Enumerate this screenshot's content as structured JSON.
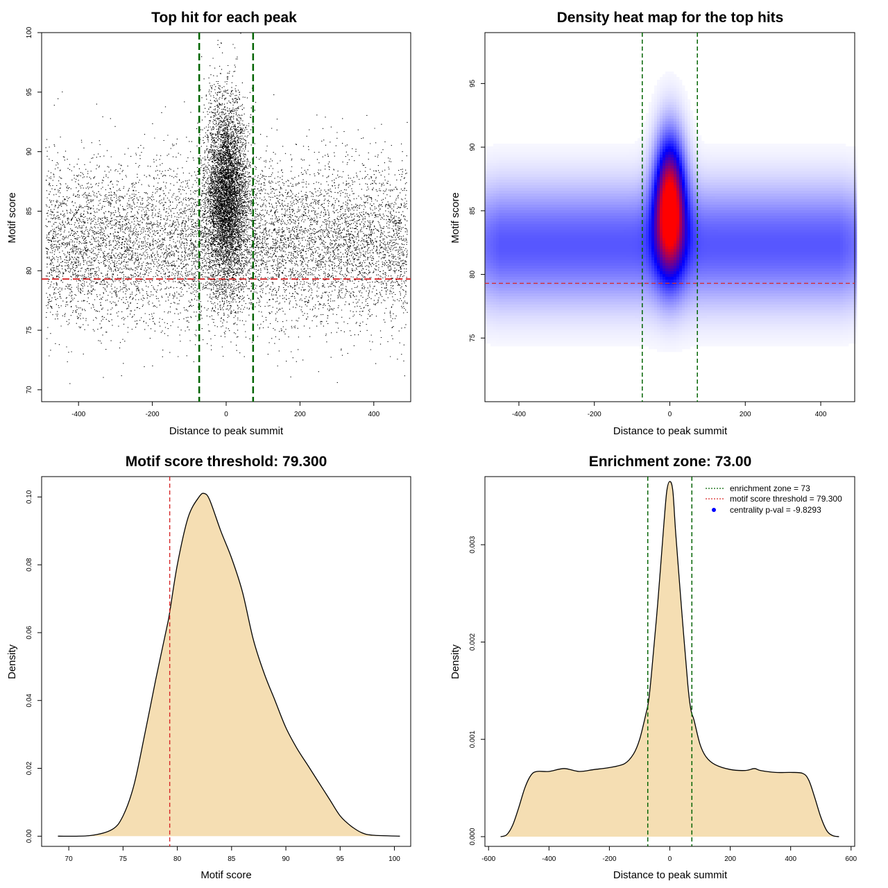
{
  "colors": {
    "points": "#000000",
    "threshold_line": "#d62728",
    "zone_line": "#006400",
    "density_fill": "#f5deb3",
    "density_outline": "#000000",
    "heat_low": "#ffffff",
    "heat_mid": "#0000ff",
    "heat_high": "#ff0000",
    "legend_dot": "#0000ff"
  },
  "chart_data": [
    {
      "id": "scatter",
      "type": "scatter",
      "title": "Top hit for each peak",
      "xlabel": "Distance to peak summit",
      "ylabel": "Motif score",
      "xlim": [
        -500,
        500
      ],
      "ylim": [
        69,
        100
      ],
      "xticks": [
        -400,
        -200,
        0,
        200,
        400
      ],
      "yticks": [
        70,
        75,
        80,
        85,
        90,
        95,
        100
      ],
      "threshold": 79.3,
      "zone": [
        -73,
        73
      ],
      "description_of_points": "~15000 points; background band uniform in x over -490..490 with scores ~76-92 (centered ~82); central cluster within about +/-60 with scores ~78-97",
      "background": {
        "x_range": [
          -490,
          490
        ],
        "score_mean": 82.3,
        "score_sd": 3.4,
        "n": 9000
      },
      "central": {
        "x_sd": 28,
        "score_mean": 86.5,
        "score_sd": 3.8,
        "n": 6000
      }
    },
    {
      "id": "heatmap",
      "type": "heatmap",
      "title": "Density heat map for the top hits",
      "xlabel": "Distance to peak summit",
      "ylabel": "Motif score",
      "xlim": [
        -490,
        490
      ],
      "ylim": [
        70,
        99
      ],
      "xticks": [
        -400,
        -200,
        0,
        200,
        400
      ],
      "yticks": [
        75,
        80,
        85,
        90,
        95
      ],
      "threshold": 79.3,
      "zone": [
        -73,
        73
      ],
      "components": [
        {
          "name": "background band",
          "x_range": [
            -490,
            490
          ],
          "score_center": 82.3,
          "score_sd": 3.2,
          "weight": 0.6
        },
        {
          "name": "central peak",
          "x_center": 0,
          "x_sd": 28,
          "score_center": 85.5,
          "score_sd": 3.6,
          "weight": 1.0
        }
      ]
    },
    {
      "id": "score-density",
      "type": "area",
      "title": "Motif score threshold: 79.300",
      "xlabel": "Motif score",
      "ylabel": "Density",
      "xlim": [
        67.5,
        101.5
      ],
      "ylim": [
        -0.003,
        0.106
      ],
      "xticks": [
        70,
        75,
        80,
        85,
        90,
        95,
        100
      ],
      "yticks": [
        0.0,
        0.02,
        0.04,
        0.06,
        0.08,
        0.1
      ],
      "ytick_labels": [
        "0.00",
        "0.02",
        "0.04",
        "0.06",
        "0.08",
        "0.10"
      ],
      "threshold": 79.3,
      "x": [
        69,
        72,
        74,
        75,
        76,
        77,
        78,
        79,
        79.3,
        80,
        81,
        82,
        82.5,
        83,
        84,
        85,
        86,
        87,
        88,
        89,
        90,
        91,
        92,
        93,
        94,
        95,
        96,
        97,
        98,
        100.5
      ],
      "y": [
        0.0,
        0.0002,
        0.002,
        0.006,
        0.015,
        0.03,
        0.046,
        0.061,
        0.066,
        0.08,
        0.094,
        0.1,
        0.101,
        0.099,
        0.09,
        0.082,
        0.072,
        0.058,
        0.048,
        0.04,
        0.032,
        0.026,
        0.021,
        0.016,
        0.011,
        0.006,
        0.003,
        0.001,
        0.0003,
        0.0
      ]
    },
    {
      "id": "distance-density",
      "type": "area",
      "title": "Enrichment zone: 73.00",
      "xlabel": "Distance to peak summit",
      "ylabel": "Density",
      "xlim": [
        -612,
        612
      ],
      "ylim": [
        -0.0001,
        0.0037
      ],
      "xticks": [
        -600,
        -400,
        -200,
        0,
        200,
        400,
        600
      ],
      "yticks": [
        0.0,
        0.001,
        0.002,
        0.003
      ],
      "ytick_labels": [
        "0.000",
        "0.001",
        "0.002",
        "0.003"
      ],
      "zone": [
        -73,
        73
      ],
      "x": [
        -560,
        -540,
        -520,
        -500,
        -480,
        -460,
        -440,
        -400,
        -350,
        -300,
        -250,
        -200,
        -150,
        -120,
        -100,
        -80,
        -70,
        -60,
        -40,
        -20,
        -10,
        0,
        10,
        20,
        40,
        60,
        70,
        80,
        100,
        120,
        150,
        200,
        250,
        280,
        300,
        350,
        400,
        440,
        460,
        480,
        500,
        520,
        540,
        560
      ],
      "y": [
        0.0,
        2e-05,
        0.00012,
        0.0003,
        0.0005,
        0.00063,
        0.00067,
        0.00067,
        0.0007,
        0.00067,
        0.00069,
        0.00071,
        0.00075,
        0.00085,
        0.001,
        0.00125,
        0.0014,
        0.0017,
        0.0024,
        0.0032,
        0.00355,
        0.00365,
        0.00355,
        0.0031,
        0.0023,
        0.00155,
        0.0013,
        0.0012,
        0.00095,
        0.00082,
        0.00074,
        0.00069,
        0.00068,
        0.0007,
        0.00068,
        0.00066,
        0.00066,
        0.00065,
        0.00058,
        0.0004,
        0.0002,
        6e-05,
        1e-05,
        0.0
      ]
    }
  ],
  "legend": {
    "items": [
      {
        "label": "enrichment zone = 73",
        "kind": "line",
        "color": "#006400"
      },
      {
        "label": "motif score threshold = 79.300",
        "kind": "line",
        "color": "#d62728"
      },
      {
        "label": "centrality p-val = -9.8293",
        "kind": "dot",
        "color": "#0000ff"
      }
    ]
  }
}
